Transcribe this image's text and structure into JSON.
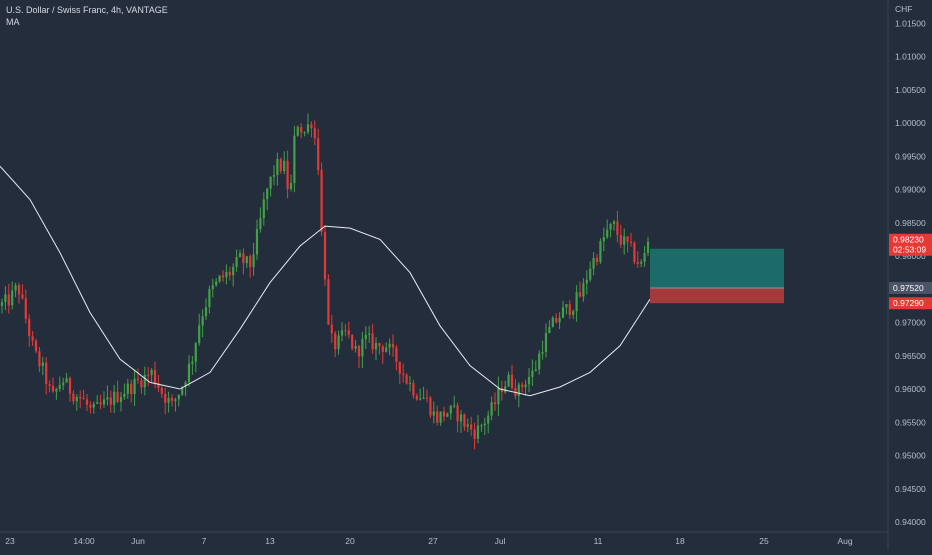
{
  "header": {
    "title": "U.S. Dollar / Swiss Franc, 4h, VANTAGE",
    "indicator": "MA"
  },
  "colors": {
    "background": "#232d3b",
    "up": "#43a047",
    "down": "#e53935",
    "ma_line": "#e8ebf0",
    "target_zone": "#1c6b68",
    "stop_zone": "#a33b3b",
    "axis_text": "#b8bfcc",
    "separator": "#3a4556"
  },
  "chart_data": {
    "type": "candlestick",
    "symbol": "U.S. Dollar / Swiss Franc",
    "timeframe": "4h",
    "source": "VANTAGE",
    "currency_label": "CHF",
    "x_labels": [
      "23",
      "14:00",
      "Jun",
      "7",
      "13",
      "20",
      "27",
      "Jul",
      "11",
      "18",
      "25",
      "Aug"
    ],
    "y_ticks": [
      "1.01500",
      "1.01000",
      "1.00500",
      "1.00000",
      "0.99500",
      "0.99000",
      "0.98500",
      "0.98000",
      "0.97500",
      "0.97000",
      "0.96500",
      "0.96000",
      "0.95500",
      "0.95000",
      "0.94500",
      "0.94000"
    ],
    "ylim": [
      0.9385,
      1.0185
    ],
    "price_path": [
      {
        "x": 0,
        "y": 0.9725
      },
      {
        "x": 10,
        "y": 0.9735
      },
      {
        "x": 18,
        "y": 0.9755
      },
      {
        "x": 26,
        "y": 0.9705
      },
      {
        "x": 34,
        "y": 0.9655
      },
      {
        "x": 44,
        "y": 0.9625
      },
      {
        "x": 52,
        "y": 0.9585
      },
      {
        "x": 62,
        "y": 0.9615
      },
      {
        "x": 72,
        "y": 0.9595
      },
      {
        "x": 82,
        "y": 0.9585
      },
      {
        "x": 92,
        "y": 0.9565
      },
      {
        "x": 102,
        "y": 0.9575
      },
      {
        "x": 112,
        "y": 0.9585
      },
      {
        "x": 122,
        "y": 0.9595
      },
      {
        "x": 132,
        "y": 0.9605
      },
      {
        "x": 142,
        "y": 0.9615
      },
      {
        "x": 152,
        "y": 0.9625
      },
      {
        "x": 162,
        "y": 0.9595
      },
      {
        "x": 172,
        "y": 0.9575
      },
      {
        "x": 182,
        "y": 0.9605
      },
      {
        "x": 192,
        "y": 0.9645
      },
      {
        "x": 200,
        "y": 0.9705
      },
      {
        "x": 210,
        "y": 0.9745
      },
      {
        "x": 220,
        "y": 0.9765
      },
      {
        "x": 230,
        "y": 0.9775
      },
      {
        "x": 240,
        "y": 0.9795
      },
      {
        "x": 250,
        "y": 0.9785
      },
      {
        "x": 258,
        "y": 0.9835
      },
      {
        "x": 266,
        "y": 0.9895
      },
      {
        "x": 276,
        "y": 0.9935
      },
      {
        "x": 284,
        "y": 0.9935
      },
      {
        "x": 290,
        "y": 0.9885
      },
      {
        "x": 296,
        "y": 1.0005
      },
      {
        "x": 304,
        "y": 0.9985
      },
      {
        "x": 312,
        "y": 1.0005
      },
      {
        "x": 318,
        "y": 0.9945
      },
      {
        "x": 322,
        "y": 0.9835
      },
      {
        "x": 326,
        "y": 0.9755
      },
      {
        "x": 330,
        "y": 0.9675
      },
      {
        "x": 336,
        "y": 0.9665
      },
      {
        "x": 346,
        "y": 0.9685
      },
      {
        "x": 356,
        "y": 0.9655
      },
      {
        "x": 366,
        "y": 0.9675
      },
      {
        "x": 376,
        "y": 0.9665
      },
      {
        "x": 386,
        "y": 0.9665
      },
      {
        "x": 396,
        "y": 0.9645
      },
      {
        "x": 406,
        "y": 0.9615
      },
      {
        "x": 416,
        "y": 0.9595
      },
      {
        "x": 426,
        "y": 0.9585
      },
      {
        "x": 436,
        "y": 0.9555
      },
      {
        "x": 446,
        "y": 0.9565
      },
      {
        "x": 456,
        "y": 0.9565
      },
      {
        "x": 466,
        "y": 0.9545
      },
      {
        "x": 476,
        "y": 0.9535
      },
      {
        "x": 486,
        "y": 0.9555
      },
      {
        "x": 494,
        "y": 0.9575
      },
      {
        "x": 502,
        "y": 0.9605
      },
      {
        "x": 510,
        "y": 0.9615
      },
      {
        "x": 518,
        "y": 0.9595
      },
      {
        "x": 526,
        "y": 0.9615
      },
      {
        "x": 534,
        "y": 0.9625
      },
      {
        "x": 542,
        "y": 0.9665
      },
      {
        "x": 552,
        "y": 0.9695
      },
      {
        "x": 562,
        "y": 0.9715
      },
      {
        "x": 572,
        "y": 0.9725
      },
      {
        "x": 582,
        "y": 0.9745
      },
      {
        "x": 590,
        "y": 0.9785
      },
      {
        "x": 598,
        "y": 0.9805
      },
      {
        "x": 606,
        "y": 0.9835
      },
      {
        "x": 614,
        "y": 0.9845
      },
      {
        "x": 620,
        "y": 0.9825
      },
      {
        "x": 628,
        "y": 0.9815
      },
      {
        "x": 636,
        "y": 0.9795
      },
      {
        "x": 642,
        "y": 0.9785
      },
      {
        "x": 648,
        "y": 0.9823
      }
    ],
    "moving_average": [
      {
        "x": 0,
        "y": 0.9935
      },
      {
        "x": 30,
        "y": 0.9885
      },
      {
        "x": 60,
        "y": 0.9805
      },
      {
        "x": 90,
        "y": 0.9715
      },
      {
        "x": 120,
        "y": 0.9645
      },
      {
        "x": 150,
        "y": 0.961
      },
      {
        "x": 180,
        "y": 0.96
      },
      {
        "x": 210,
        "y": 0.9625
      },
      {
        "x": 240,
        "y": 0.969
      },
      {
        "x": 270,
        "y": 0.976
      },
      {
        "x": 300,
        "y": 0.9815
      },
      {
        "x": 325,
        "y": 0.9845
      },
      {
        "x": 350,
        "y": 0.9842
      },
      {
        "x": 380,
        "y": 0.9825
      },
      {
        "x": 410,
        "y": 0.9775
      },
      {
        "x": 440,
        "y": 0.9695
      },
      {
        "x": 470,
        "y": 0.9635
      },
      {
        "x": 500,
        "y": 0.96
      },
      {
        "x": 530,
        "y": 0.959
      },
      {
        "x": 560,
        "y": 0.9603
      },
      {
        "x": 590,
        "y": 0.9625
      },
      {
        "x": 620,
        "y": 0.9665
      },
      {
        "x": 650,
        "y": 0.9735
      }
    ],
    "position": {
      "type": "long",
      "target_price": 0.9811,
      "entry_price": 0.9752,
      "stop_price": 0.9729
    },
    "badges": {
      "current_price": "0.98230",
      "countdown": "02:53:09",
      "entry": "0.97520",
      "stop": "0.97290"
    }
  }
}
